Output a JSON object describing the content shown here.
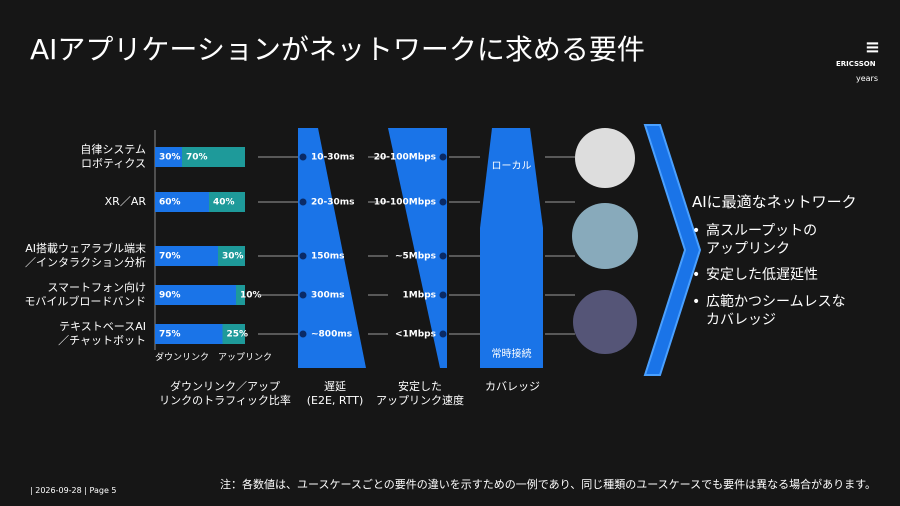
{
  "header": {
    "title": "AIアプリケーションがネットワークに求める要件",
    "logo": "ERICSSON",
    "logo_sub": "years"
  },
  "chart_data": {
    "type": "bar",
    "orientation": "horizontal",
    "stacked": true,
    "categories": [
      "自律システム\nロボティクス",
      "XR／AR",
      "AI搭載ウェアラブル端末\n／インタラクション分析",
      "スマートフォン向け\nモバイルブロードバンド",
      "テキストベースAI\n／チャットボット"
    ],
    "series": [
      {
        "name": "ダウンリンク",
        "color": "#1a74e8",
        "values": [
          30,
          60,
          70,
          90,
          75
        ],
        "value_labels": [
          "30%",
          "60%",
          "70%",
          "90%",
          "75%"
        ]
      },
      {
        "name": "アップリンク",
        "color": "#1e9a9a",
        "values": [
          70,
          40,
          30,
          10,
          25
        ],
        "value_labels": [
          "70%",
          "40%",
          "30%",
          "10%",
          "25%"
        ]
      }
    ],
    "xlim": [
      0,
      100
    ],
    "xlabel": "ダウンリンク／アップ\nリンクのトラフィック比率"
  },
  "columns": {
    "latency": {
      "title": "遅延\n(E2E, RTT)",
      "values": [
        "10-30ms",
        "20-30ms",
        "150ms",
        "300ms",
        "~800ms"
      ]
    },
    "uplink": {
      "title": "安定した\nアップリンク速度",
      "values": [
        "20-100Mbps",
        "10-100Mbps",
        "~5Mbps",
        "1Mbps",
        "<1Mbps"
      ]
    },
    "coverage": {
      "title": "カバレッジ",
      "top": "ローカル",
      "bottom": "常時接続"
    }
  },
  "summary": {
    "heading": "AIに最適なネットワーク",
    "bullets": [
      "高スループットの\nアップリンク",
      "安定した低遅延性",
      "広範かつシームレスな\nカバレッジ"
    ]
  },
  "footer": {
    "page": "| 2026-09-28 | Page 5",
    "note": "注：各数値は、ユースケースごとの要件の違いを示すための一例であり、同じ種類のユースケースでも要件は異なる場合があります。"
  }
}
